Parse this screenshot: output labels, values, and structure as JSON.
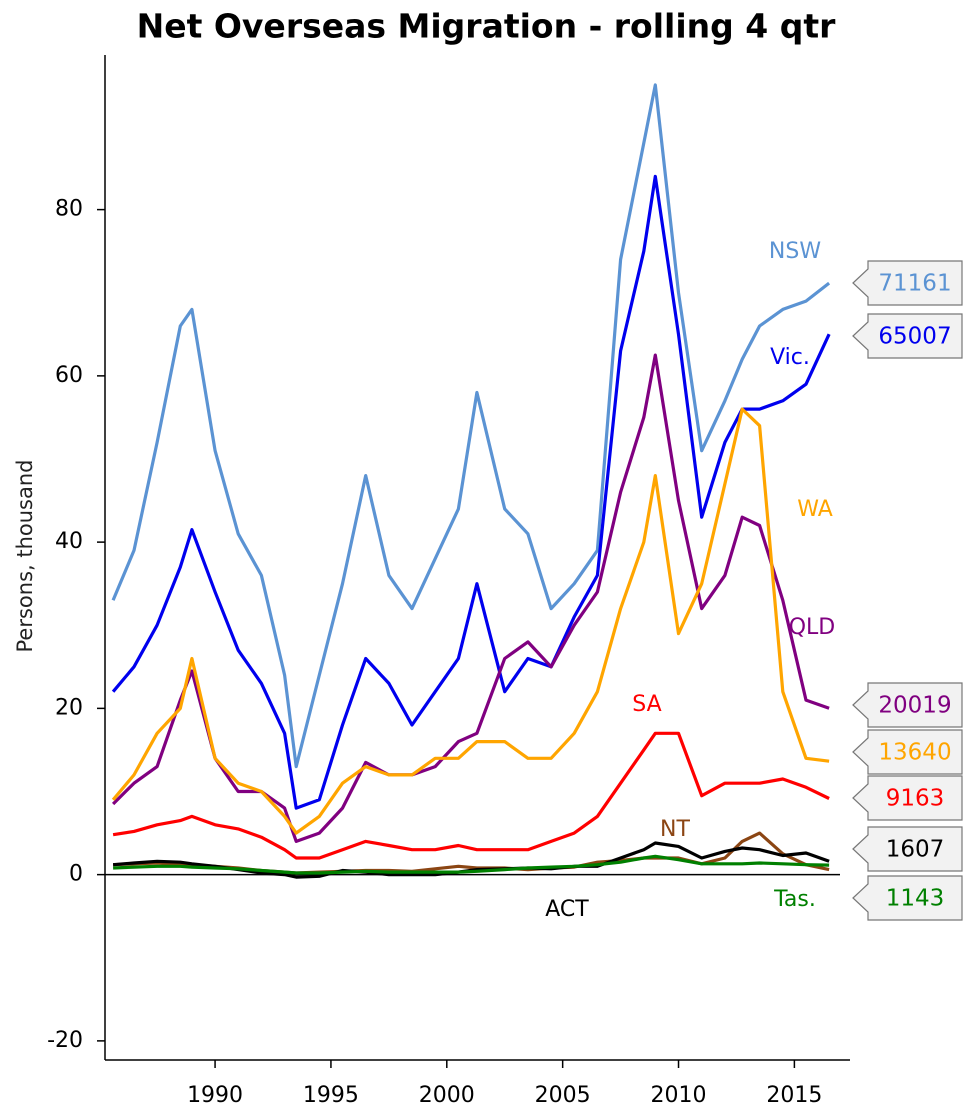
{
  "chart_data": {
    "type": "line",
    "title": "Net Overseas Migration - rolling 4 qtr",
    "y_label": "Persons, thousand",
    "x": [
      1985.6,
      1986.5,
      1987.5,
      1988.5,
      1989,
      1990,
      1991,
      1992,
      1993,
      1993.5,
      1994.5,
      1995.5,
      1996.5,
      1997.5,
      1998.5,
      1999.5,
      2000.5,
      2001.3,
      2002.5,
      2003.5,
      2004.5,
      2005.5,
      2006.5,
      2007.5,
      2008.5,
      2009,
      2010,
      2011,
      2012,
      2012.75,
      2013.5,
      2014.5,
      2015.5,
      2016.5
    ],
    "xlim": [
      1985.25,
      2017.4
    ],
    "xticks": [
      1990,
      1995,
      2000,
      2005,
      2010,
      2015
    ],
    "ylim": [
      -22.3,
      98.6
    ],
    "yticks": [
      -20,
      0,
      20,
      40,
      60,
      80
    ],
    "series": [
      {
        "name": "NSW",
        "color": "#5b93d3",
        "values": [
          33,
          39,
          52,
          66,
          68,
          51,
          41,
          36,
          24,
          13,
          24,
          35,
          48,
          36,
          32,
          38,
          44,
          58,
          44,
          41,
          32,
          35,
          39,
          74,
          88,
          95,
          70,
          51,
          57,
          62,
          66,
          68,
          69,
          71.161
        ],
        "value_labels": [
          null,
          null,
          null,
          null,
          null,
          null,
          null,
          null,
          null,
          null,
          null,
          null,
          null,
          null,
          null,
          null,
          null,
          null,
          null,
          null,
          null,
          null,
          null,
          null,
          null,
          null,
          null,
          null,
          null,
          null,
          null,
          null,
          null,
          "71161"
        ]
      },
      {
        "name": "Vic.",
        "color": "#0000ee",
        "values": [
          22,
          25,
          30,
          37,
          41.5,
          34,
          27,
          23,
          17,
          8,
          9,
          18,
          26,
          23,
          18,
          22,
          26,
          35,
          22,
          26,
          25,
          31,
          36,
          63,
          75,
          84,
          65,
          43,
          52,
          56,
          56,
          57,
          59,
          65.007
        ],
        "value_labels": [
          null,
          null,
          null,
          null,
          null,
          null,
          null,
          null,
          null,
          null,
          null,
          null,
          null,
          null,
          null,
          null,
          null,
          null,
          null,
          null,
          null,
          null,
          null,
          null,
          null,
          null,
          null,
          null,
          null,
          null,
          null,
          null,
          null,
          "65007"
        ]
      },
      {
        "name": "QLD",
        "color": "#800080",
        "values": [
          8.5,
          11,
          13,
          21,
          24.5,
          14,
          10,
          10,
          8,
          4,
          5,
          8,
          13.5,
          12,
          12,
          13,
          16,
          17,
          26,
          28,
          25,
          30,
          34,
          46,
          55,
          62.5,
          45,
          32,
          36,
          43,
          42,
          33,
          21,
          20.019
        ],
        "value_labels": [
          null,
          null,
          null,
          null,
          null,
          null,
          null,
          null,
          null,
          null,
          null,
          null,
          null,
          null,
          null,
          null,
          null,
          null,
          null,
          null,
          null,
          null,
          null,
          null,
          null,
          null,
          null,
          null,
          null,
          null,
          null,
          null,
          null,
          "20019"
        ]
      },
      {
        "name": "WA",
        "color": "#ffa500",
        "values": [
          9,
          12,
          17,
          20,
          26,
          14,
          11,
          10,
          7,
          5,
          7,
          11,
          13,
          12,
          12,
          14,
          14,
          16,
          16,
          14,
          14,
          17,
          22,
          32,
          40,
          48,
          29,
          35,
          47,
          56,
          54,
          22,
          14,
          13.64
        ],
        "value_labels": [
          null,
          null,
          null,
          null,
          null,
          null,
          null,
          null,
          null,
          null,
          null,
          null,
          null,
          null,
          null,
          null,
          null,
          null,
          null,
          null,
          null,
          null,
          null,
          null,
          null,
          null,
          null,
          null,
          null,
          null,
          null,
          null,
          null,
          "13640"
        ]
      },
      {
        "name": "SA",
        "color": "#ff0000",
        "values": [
          4.8,
          5.2,
          6,
          6.5,
          7,
          6,
          5.5,
          4.5,
          3,
          2,
          2,
          3,
          4,
          3.5,
          3,
          3,
          3.5,
          3,
          3,
          3,
          4,
          5,
          7,
          11,
          15,
          17,
          17,
          9.5,
          11,
          11,
          11,
          11.5,
          10.5,
          9.163
        ],
        "value_labels": [
          null,
          null,
          null,
          null,
          null,
          null,
          null,
          null,
          null,
          null,
          null,
          null,
          null,
          null,
          null,
          null,
          null,
          null,
          null,
          null,
          null,
          null,
          null,
          null,
          null,
          null,
          null,
          null,
          null,
          null,
          null,
          null,
          null,
          "9163"
        ]
      },
      {
        "name": "NT",
        "color": "#8b4513",
        "values": [
          1.2,
          1.3,
          1.4,
          1.2,
          1.2,
          1,
          0.8,
          0.5,
          0.3,
          0.2,
          0.3,
          0.4,
          0.5,
          0.5,
          0.4,
          0.7,
          1,
          0.8,
          0.8,
          0.6,
          0.8,
          0.9,
          1.5,
          1.7,
          2,
          2,
          2,
          1.3,
          2,
          4,
          5,
          2.5,
          1.2,
          0.6
        ]
      },
      {
        "name": "ACT",
        "color": "#000000",
        "values": [
          1.2,
          1.4,
          1.6,
          1.5,
          1.3,
          1,
          0.6,
          0.2,
          0,
          -0.3,
          -0.2,
          0.5,
          0.3,
          0,
          0,
          0,
          0.3,
          0.6,
          0.7,
          0.8,
          0.7,
          1,
          1,
          2,
          3,
          3.8,
          3.4,
          2,
          2.8,
          3.2,
          3,
          2.3,
          2.6,
          1.607
        ],
        "value_labels": [
          null,
          null,
          null,
          null,
          null,
          null,
          null,
          null,
          null,
          null,
          null,
          null,
          null,
          null,
          null,
          null,
          null,
          null,
          null,
          null,
          null,
          null,
          null,
          null,
          null,
          null,
          null,
          null,
          null,
          null,
          null,
          null,
          null,
          "1607"
        ]
      },
      {
        "name": "Tas.",
        "color": "#008000",
        "values": [
          0.8,
          0.9,
          1,
          1,
          0.9,
          0.8,
          0.7,
          0.5,
          0.3,
          0.2,
          0.2,
          0.3,
          0.4,
          0.3,
          0.3,
          0.3,
          0.3,
          0.4,
          0.6,
          0.8,
          0.9,
          1,
          1.2,
          1.5,
          2,
          2.2,
          1.8,
          1.3,
          1.3,
          1.3,
          1.4,
          1.3,
          1.2,
          1.143
        ],
        "value_labels": [
          null,
          null,
          null,
          null,
          null,
          null,
          null,
          null,
          null,
          null,
          null,
          null,
          null,
          null,
          null,
          null,
          null,
          null,
          null,
          null,
          null,
          null,
          null,
          null,
          null,
          null,
          null,
          null,
          null,
          null,
          null,
          null,
          null,
          "1143"
        ]
      }
    ]
  }
}
